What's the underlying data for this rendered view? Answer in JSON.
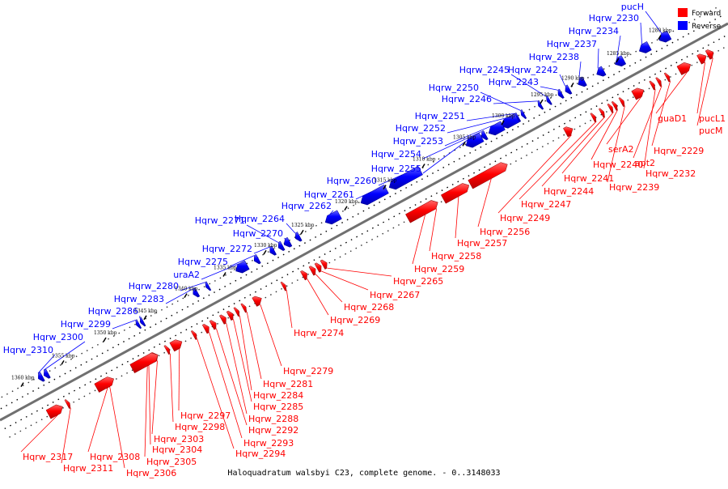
{
  "caption": "Haloquadratum walsbyi C23, complete genome. - 0..3148033",
  "legend": [
    {
      "label": "Forward",
      "color": "#ff0000"
    },
    {
      "label": "Reverse",
      "color": "#0000ff"
    }
  ],
  "colors": {
    "forward": "#ff0000",
    "reverse": "#0000ff",
    "axis": "#707070"
  },
  "ticks": [
    "1280 kbp",
    "1285 kbp",
    "1290 kbp",
    "1295 kbp",
    "1300 kbp",
    "1305 kbp",
    "1310 kbp",
    "1315 kbp",
    "1320 kbp",
    "1325 kbp",
    "1330 kbp",
    "1335 kbp",
    "1340 kbp",
    "1345 kbp",
    "1350 kbp",
    "1355 kbp",
    "1360 kbp"
  ],
  "reverse_genes": [
    "pucH",
    "Hqrw_2230",
    "Hqrw_2234",
    "Hqrw_2237",
    "Hqrw_2238",
    "Hqrw_2242",
    "Hqrw_2243",
    "Hqrw_2245",
    "Hqrw_2246",
    "Hqrw_2250",
    "Hqrw_2251",
    "Hqrw_2252",
    "Hqrw_2253",
    "Hqrw_2254",
    "Hqrw_2255",
    "Hqrw_2260",
    "Hqrw_2261",
    "Hqrw_2262",
    "Hqrw_2264",
    "Hqrw_2270",
    "Hqrw_2271",
    "Hqrw_2272",
    "Hqrw_2275",
    "uraA2",
    "Hqrw_2280",
    "Hqrw_2283",
    "Hqrw_2286",
    "Hqrw_2299",
    "Hqrw_2300",
    "Hqrw_2310"
  ],
  "forward_genes": [
    "guaD1",
    "pucL1",
    "pucM",
    "Hqrw_2229",
    "apt2",
    "Hqrw_2232",
    "serA2",
    "Hqrw_2239",
    "Hqrw_2240",
    "Hqrw_2241",
    "Hqrw_2244",
    "Hqrw_2247",
    "Hqrw_2249",
    "Hqrw_2256",
    "Hqrw_2257",
    "Hqrw_2258",
    "Hqrw_2259",
    "Hqrw_2265",
    "Hqrw_2267",
    "Hqrw_2268",
    "Hqrw_2269",
    "Hqrw_2274",
    "Hqrw_2279",
    "Hqrw_2281",
    "Hqrw_2284",
    "Hqrw_2285",
    "Hqrw_2288",
    "Hqrw_2292",
    "Hqrw_2293",
    "Hqrw_2294",
    "Hqrw_2297",
    "Hqrw_2298",
    "Hqrw_2303",
    "Hqrw_2304",
    "Hqrw_2305",
    "Hqrw_2306",
    "Hqrw_2308",
    "Hqrw_2311",
    "Hqrw_2317"
  ]
}
